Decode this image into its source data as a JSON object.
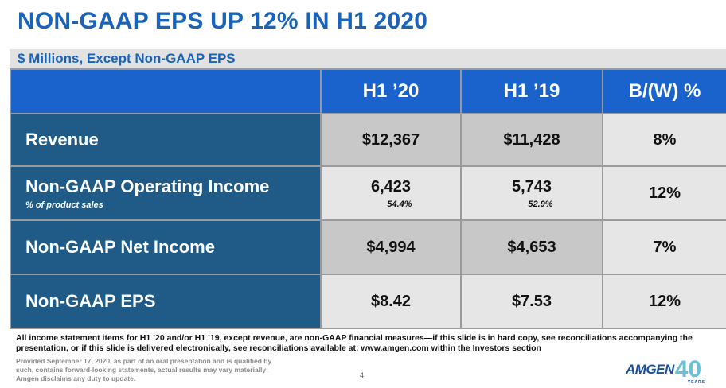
{
  "title": "NON-GAAP EPS UP 12% IN H1 2020",
  "subheading": "$ Millions, Except Non-GAAP EPS",
  "table": {
    "columns": [
      "H1 ’20",
      "H1 ’19",
      "B/(W) %"
    ],
    "rows": [
      {
        "label": "Revenue",
        "sublabel": "",
        "h1_20": "$12,367",
        "h1_20_sub": "",
        "h1_19": "$11,428",
        "h1_19_sub": "",
        "bw": "8%"
      },
      {
        "label": "Non-GAAP Operating Income",
        "sublabel": "% of product sales",
        "h1_20": "6,423",
        "h1_20_sub": "54.4%",
        "h1_19": "5,743",
        "h1_19_sub": "52.9%",
        "bw": "12%"
      },
      {
        "label": "Non-GAAP Net Income",
        "sublabel": "",
        "h1_20": "$4,994",
        "h1_20_sub": "",
        "h1_19": "$4,653",
        "h1_19_sub": "",
        "bw": "7%"
      },
      {
        "label": "Non-GAAP EPS",
        "sublabel": "",
        "h1_20": "$8.42",
        "h1_20_sub": "",
        "h1_19": "$7.53",
        "h1_19_sub": "",
        "bw": "12%"
      }
    ]
  },
  "footnote": "All income statement items for H1 ’20 and/or H1 ’19, except revenue, are non-GAAP financial measures—if this slide is in hard copy, see reconciliations accompanying the presentation, or if this slide is delivered electronically, see reconciliations available at: www.amgen.com within the Investors section",
  "disclaimer": "Provided September 17, 2020, as part of an oral presentation and is qualified by such, contains forward-looking statements, actual results may vary materially; Amgen disclaims any duty to update.",
  "page_number": "4",
  "logo": {
    "text": "AMGEN",
    "number": "40",
    "years": "YEARS"
  },
  "colors": {
    "title_blue": "#1a63b8",
    "header_blue": "#1a63cc",
    "label_navy": "#1f5b86",
    "gray_dark": "#c8c8c8",
    "gray_light": "#e6e6e6"
  }
}
